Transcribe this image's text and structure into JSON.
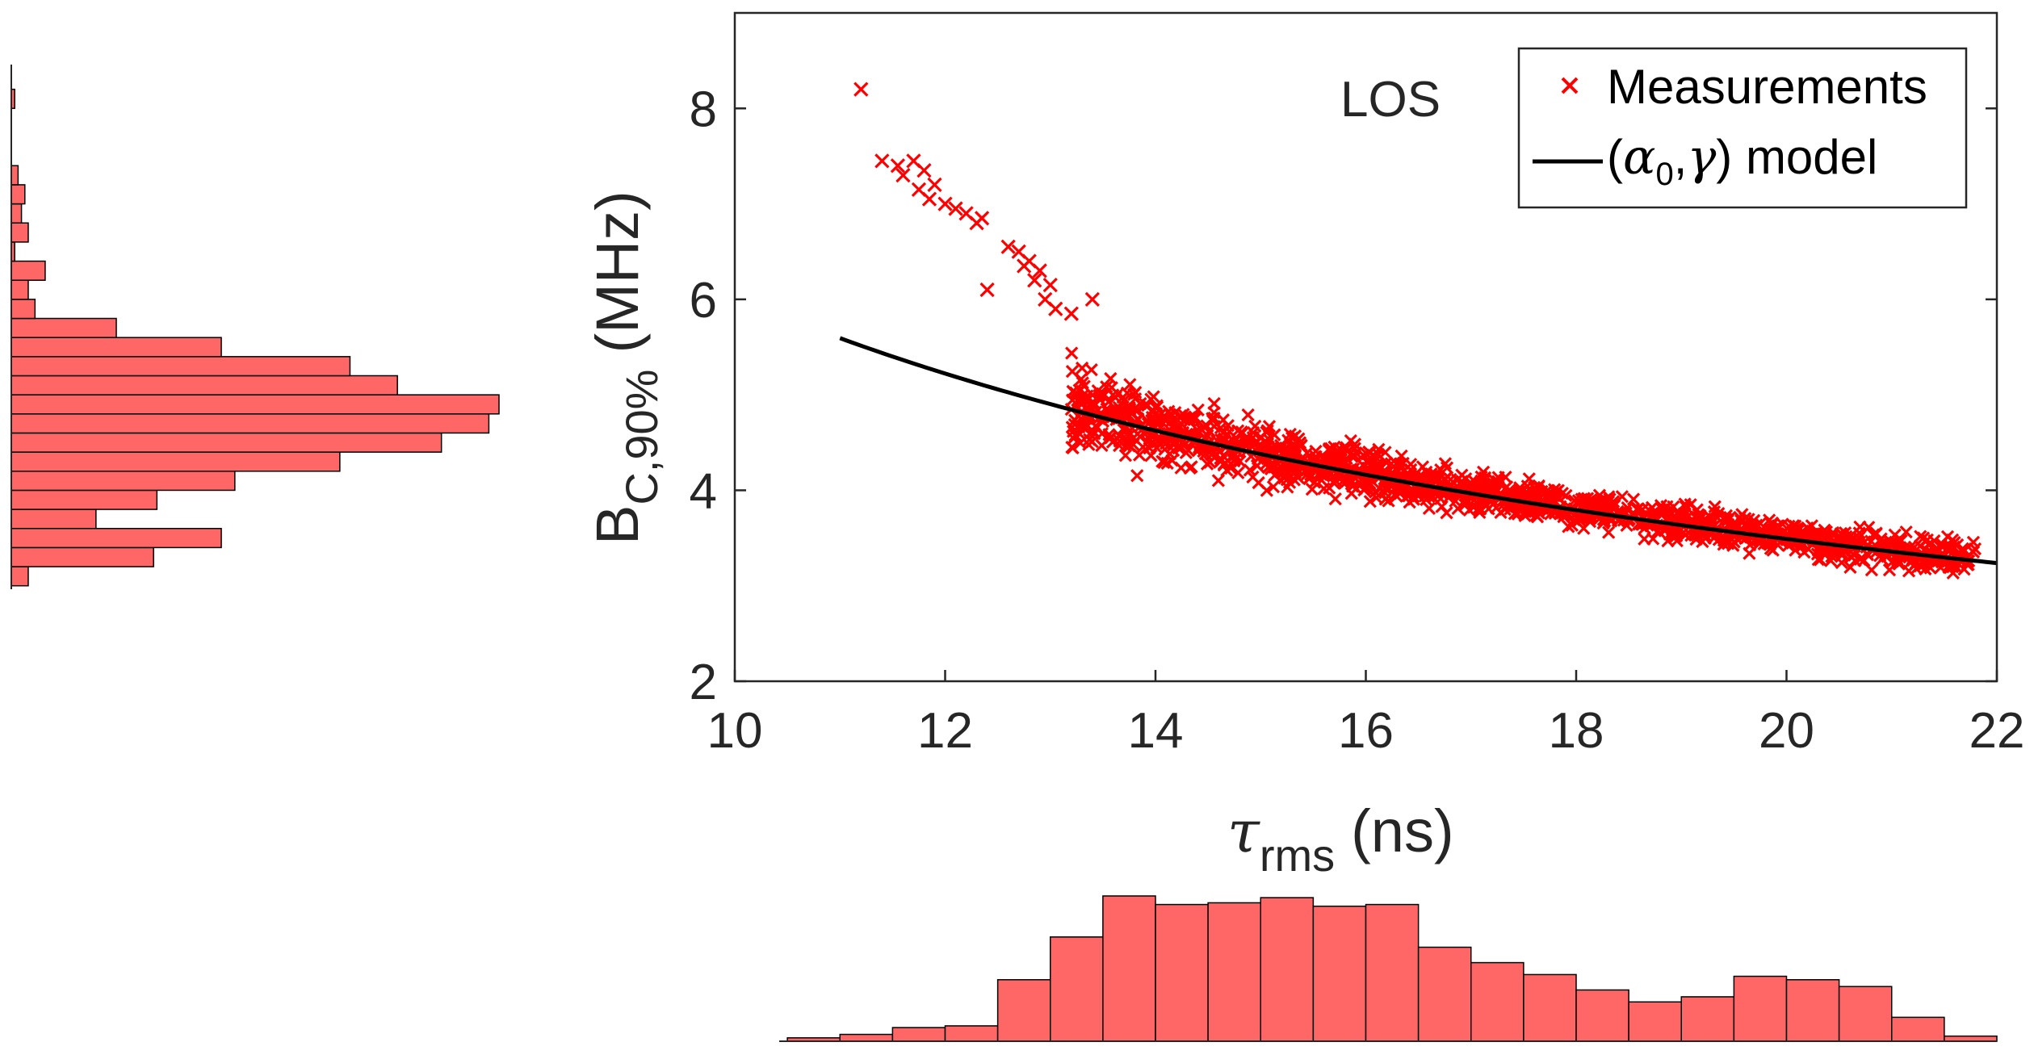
{
  "chart_data": [
    {
      "type": "scatter",
      "annotation": "LOS",
      "xlabel": {
        "base": "τ",
        "sub": "rms",
        "unit": "(ns)"
      },
      "ylabel": {
        "base": "B",
        "sub": "C,90%",
        "unit": "(MHz)"
      },
      "xlim": [
        10,
        22
      ],
      "ylim": [
        2,
        9
      ],
      "xticks": [
        10,
        12,
        14,
        16,
        18,
        20,
        22
      ],
      "yticks": [
        2,
        4,
        6,
        8
      ],
      "grid": false,
      "legend_position": "top-right",
      "series": [
        {
          "name": "Measurements",
          "kind": "scatter",
          "marker": "x",
          "color": "#ff0000",
          "points": [
            [
              11.2,
              8.2
            ],
            [
              11.4,
              7.45
            ],
            [
              11.55,
              7.4
            ],
            [
              11.6,
              7.3
            ],
            [
              11.7,
              7.45
            ],
            [
              11.75,
              7.15
            ],
            [
              11.8,
              7.35
            ],
            [
              11.85,
              7.05
            ],
            [
              11.9,
              7.2
            ],
            [
              12.0,
              7.0
            ],
            [
              12.1,
              6.95
            ],
            [
              12.2,
              6.9
            ],
            [
              12.3,
              6.8
            ],
            [
              12.35,
              6.85
            ],
            [
              12.4,
              6.1
            ],
            [
              12.6,
              6.55
            ],
            [
              12.7,
              6.5
            ],
            [
              12.75,
              6.35
            ],
            [
              12.8,
              6.4
            ],
            [
              12.85,
              6.2
            ],
            [
              12.9,
              6.3
            ],
            [
              12.95,
              6.0
            ],
            [
              13.0,
              6.15
            ],
            [
              13.05,
              5.9
            ],
            [
              13.2,
              5.85
            ],
            [
              13.4,
              6.0
            ]
          ]
        },
        {
          "name": "(α0,γ) model",
          "legend_label": {
            "open": "(",
            "alpha": "α",
            "alpha_sub": "0",
            "comma": ",",
            "gamma": "γ",
            "close": ") model"
          },
          "kind": "line",
          "color": "#000000",
          "model": {
            "form": "a / x^g",
            "a": 37.1,
            "g": 0.789
          },
          "x_range": [
            11,
            22
          ]
        }
      ],
      "colors": {
        "marker": "#ff0000",
        "line": "#000000",
        "axes": "#262626"
      }
    },
    {
      "type": "bar",
      "orientation": "vertical",
      "role": "marginal histogram of τ rms",
      "color": "#ff6666",
      "edge_color": "#000000",
      "bin_edges": [
        10.0,
        10.5,
        11.0,
        11.5,
        12.0,
        12.5,
        13.0,
        13.5,
        14.0,
        14.5,
        15.0,
        15.5,
        16.0,
        16.5,
        17.0,
        17.5,
        18.0,
        18.5,
        19.0,
        19.5,
        20.0,
        20.5,
        21.0,
        21.5,
        22.0
      ],
      "values": [
        0,
        2,
        4,
        8,
        9,
        36,
        61,
        85,
        80,
        81,
        84,
        79,
        80,
        55,
        46,
        39,
        30,
        23,
        26,
        38,
        36,
        32,
        14,
        3
      ]
    },
    {
      "type": "bar",
      "orientation": "horizontal",
      "role": "marginal histogram of B C,90%",
      "color": "#ff6666",
      "edge_color": "#000000",
      "bin_edges": [
        3.0,
        3.2,
        3.4,
        3.6,
        3.8,
        4.0,
        4.2,
        4.4,
        4.6,
        4.8,
        5.0,
        5.2,
        5.4,
        5.6,
        5.8,
        6.0,
        6.2,
        6.4,
        6.6,
        6.8,
        7.0,
        7.2,
        7.4,
        7.6,
        7.8,
        8.0,
        8.2
      ],
      "values": [
        5,
        42,
        62,
        25,
        43,
        66,
        97,
        127,
        141,
        144,
        114,
        100,
        62,
        31,
        7,
        5,
        10,
        1,
        5,
        3,
        4,
        2,
        0,
        0,
        0,
        1
      ]
    }
  ]
}
